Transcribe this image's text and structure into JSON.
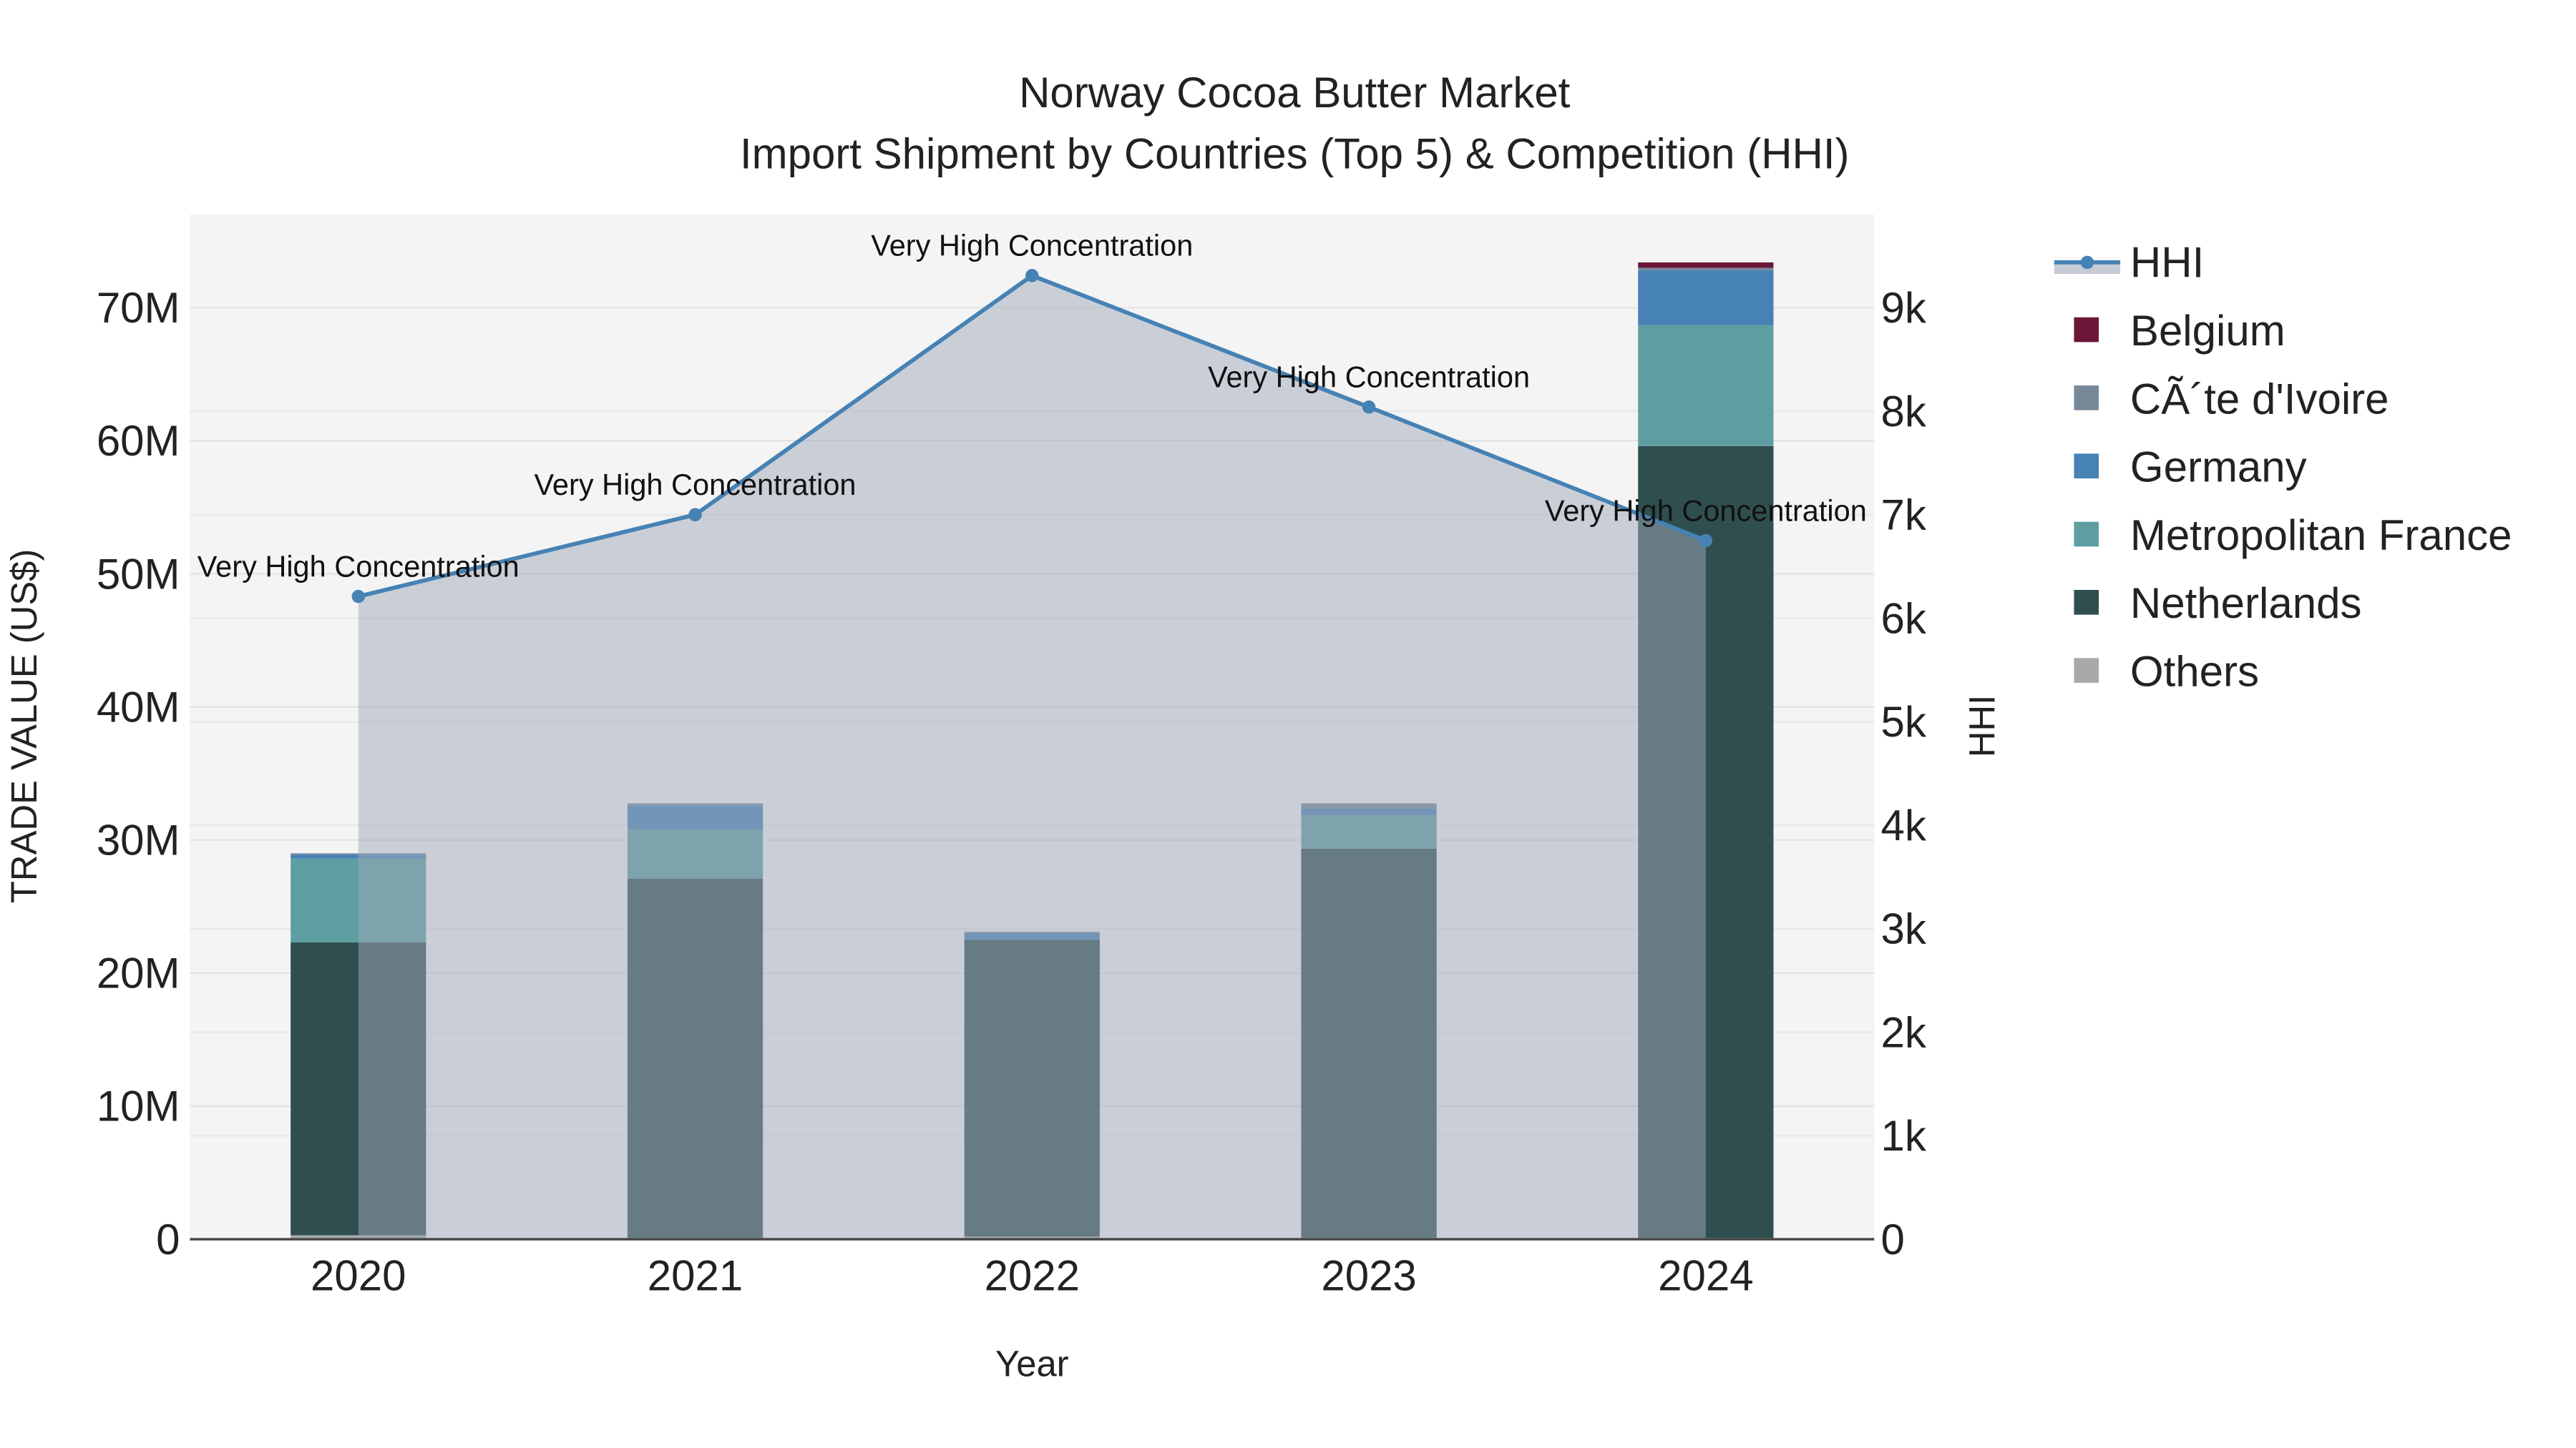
{
  "chart_data": {
    "type": "bar",
    "title": "Norway Cocoa Butter Market",
    "subtitle": "Import Shipment by Countries (Top 5) & Competition (HHI)",
    "xlabel": "Year",
    "ylabel": "TRADE VALUE (US$)",
    "y2label": "HHI",
    "categories": [
      "2020",
      "2021",
      "2022",
      "2023",
      "2024"
    ],
    "ylim": [
      0,
      77000000
    ],
    "y2lim": [
      0,
      9900
    ],
    "yticks": [
      {
        "value": 0,
        "label": "0"
      },
      {
        "value": 10000000,
        "label": "10M"
      },
      {
        "value": 20000000,
        "label": "20M"
      },
      {
        "value": 30000000,
        "label": "30M"
      },
      {
        "value": 40000000,
        "label": "40M"
      },
      {
        "value": 50000000,
        "label": "50M"
      },
      {
        "value": 60000000,
        "label": "60M"
      },
      {
        "value": 70000000,
        "label": "70M"
      }
    ],
    "y2ticks": [
      {
        "value": 0,
        "label": "0"
      },
      {
        "value": 1000,
        "label": "1k"
      },
      {
        "value": 2000,
        "label": "2k"
      },
      {
        "value": 3000,
        "label": "3k"
      },
      {
        "value": 4000,
        "label": "4k"
      },
      {
        "value": 5000,
        "label": "5k"
      },
      {
        "value": 6000,
        "label": "6k"
      },
      {
        "value": 7000,
        "label": "7k"
      },
      {
        "value": 8000,
        "label": "8k"
      },
      {
        "value": 9000,
        "label": "9k"
      }
    ],
    "stacked": true,
    "series": [
      {
        "name": "Others",
        "color": "#a9a9a9",
        "values": [
          300000,
          100000,
          200000,
          100000,
          100000
        ]
      },
      {
        "name": "Netherlands",
        "color": "#2f4f4f",
        "values": [
          22000000,
          27000000,
          22300000,
          29250000,
          59500000
        ]
      },
      {
        "name": "Metropolitan France",
        "color": "#5f9ea0",
        "values": [
          6300000,
          3700000,
          0,
          2500000,
          9100000
        ]
      },
      {
        "name": "Germany",
        "color": "#4682b4",
        "values": [
          300000,
          1800000,
          500000,
          500000,
          4100000
        ]
      },
      {
        "name": "CÃ´te d'Ivoire",
        "color": "#778899",
        "values": [
          100000,
          150000,
          100000,
          400000,
          200000
        ]
      },
      {
        "name": "Belgium",
        "color": "#6b1537",
        "values": [
          0,
          0,
          0,
          0,
          400000
        ]
      }
    ],
    "legend_order": [
      "HHI",
      "Belgium",
      "CÃ´te d'Ivoire",
      "Germany",
      "Metropolitan France",
      "Netherlands",
      "Others"
    ],
    "hhi": {
      "name": "HHI",
      "color": "#4682b4",
      "values": [
        6210,
        7000,
        9310,
        8040,
        6750
      ],
      "labels": [
        "Very High Concentration",
        "Very High Concentration",
        "Very High Concentration",
        "Very High Concentration",
        "Very High Concentration"
      ]
    },
    "legend_position": "right",
    "grid": true
  }
}
